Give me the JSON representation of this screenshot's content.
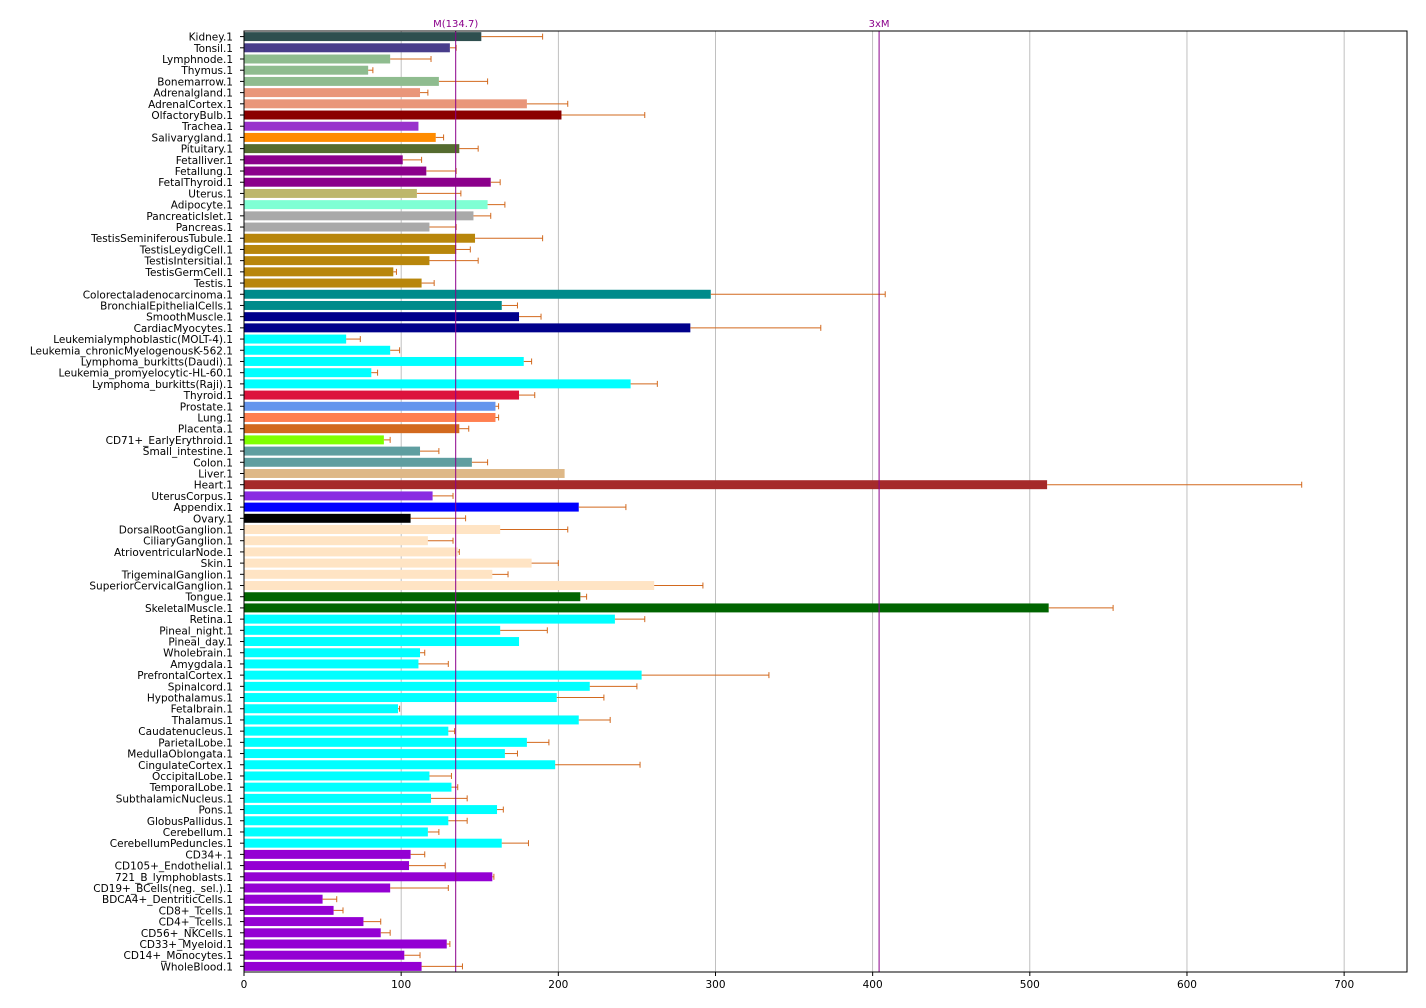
{
  "chart_data": {
    "type": "bar",
    "orientation": "horizontal",
    "grid": "vertical lines at x ticks",
    "xlim": [
      0,
      740
    ],
    "xticks": [
      0,
      100,
      200,
      300,
      400,
      500,
      600,
      700
    ],
    "reference_lines": [
      {
        "label": "M(134.7)",
        "value": 134.7,
        "color": "#8b008b"
      },
      {
        "label": "3xM",
        "value": 404.1,
        "color": "#8b008b"
      }
    ],
    "error_bar_color": "#d2691e",
    "bars": [
      {
        "label": "Kidney.1",
        "value": 151,
        "err": 39,
        "color": "#2f4f4f"
      },
      {
        "label": "Tonsil.1",
        "value": 131,
        "err": 4,
        "color": "#483d8b"
      },
      {
        "label": "Lymphnode.1",
        "value": 93,
        "err": 26,
        "color": "#8fbc8f"
      },
      {
        "label": "Thymus.1",
        "value": 79,
        "err": 3,
        "color": "#8fbc8f"
      },
      {
        "label": "Bonemarrow.1",
        "value": 124,
        "err": 31,
        "color": "#8fbc8f"
      },
      {
        "label": "Adrenalgland.1",
        "value": 112,
        "err": 5,
        "color": "#e9967a"
      },
      {
        "label": "AdrenalCortex.1",
        "value": 180,
        "err": 26,
        "color": "#e9967a"
      },
      {
        "label": "OlfactoryBulb.1",
        "value": 202,
        "err": 53,
        "color": "#8b0000"
      },
      {
        "label": "Trachea.1",
        "value": 111,
        "err": 0,
        "color": "#9932cc"
      },
      {
        "label": "Salivarygland.1",
        "value": 122,
        "err": 5,
        "color": "#ff8c00"
      },
      {
        "label": "Pituitary.1",
        "value": 137,
        "err": 12,
        "color": "#556b2f"
      },
      {
        "label": "Fetalliver.1",
        "value": 101,
        "err": 12,
        "color": "#8b008b"
      },
      {
        "label": "Fetallung.1",
        "value": 116,
        "err": 19,
        "color": "#8b008b"
      },
      {
        "label": "FetalThyroid.1",
        "value": 157,
        "err": 6,
        "color": "#8b008b"
      },
      {
        "label": "Uterus.1",
        "value": 110,
        "err": 28,
        "color": "#bdb76b"
      },
      {
        "label": "Adipocyte.1",
        "value": 155,
        "err": 11,
        "color": "#7fffd4"
      },
      {
        "label": "PancreaticIslet.1",
        "value": 146,
        "err": 11,
        "color": "#a9a9a9"
      },
      {
        "label": "Pancreas.1",
        "value": 118,
        "err": 17,
        "color": "#a9a9a9"
      },
      {
        "label": "TestisSeminiferousTubule.1",
        "value": 147,
        "err": 43,
        "color": "#b8860b"
      },
      {
        "label": "TestisLeydigCell.1",
        "value": 135,
        "err": 9,
        "color": "#b8860b"
      },
      {
        "label": "TestisIntersitial.1",
        "value": 118,
        "err": 31,
        "color": "#b8860b"
      },
      {
        "label": "TestisGermCell.1",
        "value": 95,
        "err": 2,
        "color": "#b8860b"
      },
      {
        "label": "Testis.1",
        "value": 113,
        "err": 8,
        "color": "#b8860b"
      },
      {
        "label": "Colorectaladenocarcinoma.1",
        "value": 297,
        "err": 111,
        "color": "#008b8b"
      },
      {
        "label": "BronchialEpithelialCells.1",
        "value": 164,
        "err": 10,
        "color": "#008b8b"
      },
      {
        "label": "SmoothMuscle.1",
        "value": 175,
        "err": 14,
        "color": "#00008b"
      },
      {
        "label": "CardiacMyocytes.1",
        "value": 284,
        "err": 83,
        "color": "#00008b"
      },
      {
        "label": "Leukemialymphoblastic(MOLT-4).1",
        "value": 65,
        "err": 9,
        "color": "#00ffff"
      },
      {
        "label": "Leukemia_chronicMyelogenousK-562.1",
        "value": 93,
        "err": 6,
        "color": "#00ffff"
      },
      {
        "label": "Lymphoma_burkitts(Daudi).1",
        "value": 178,
        "err": 5,
        "color": "#00ffff"
      },
      {
        "label": "Leukemia_promyelocytic-HL-60.1",
        "value": 81,
        "err": 4,
        "color": "#00ffff"
      },
      {
        "label": "Lymphoma_burkitts(Raji).1",
        "value": 246,
        "err": 17,
        "color": "#00ffff"
      },
      {
        "label": "Thyroid.1",
        "value": 175,
        "err": 10,
        "color": "#dc143c"
      },
      {
        "label": "Prostate.1",
        "value": 160,
        "err": 2,
        "color": "#6495ed"
      },
      {
        "label": "Lung.1",
        "value": 160,
        "err": 2,
        "color": "#ff7f50"
      },
      {
        "label": "Placenta.1",
        "value": 137,
        "err": 6,
        "color": "#d2691e"
      },
      {
        "label": "CD71+_EarlyErythroid.1",
        "value": 89,
        "err": 4,
        "color": "#7fff00"
      },
      {
        "label": "Small_intestine.1",
        "value": 112,
        "err": 12,
        "color": "#5f9ea0"
      },
      {
        "label": "Colon.1",
        "value": 145,
        "err": 10,
        "color": "#5f9ea0"
      },
      {
        "label": "Liver.1",
        "value": 204,
        "err": 0,
        "color": "#deb887"
      },
      {
        "label": "Heart.1",
        "value": 511,
        "err": 162,
        "color": "#a52a2a"
      },
      {
        "label": "UterusCorpus.1",
        "value": 120,
        "err": 13,
        "color": "#8a2be2"
      },
      {
        "label": "Appendix.1",
        "value": 213,
        "err": 30,
        "color": "#0000ff"
      },
      {
        "label": "Ovary.1",
        "value": 106,
        "err": 35,
        "color": "#000000"
      },
      {
        "label": "DorsalRootGanglion.1",
        "value": 163,
        "err": 43,
        "color": "#ffe4c4"
      },
      {
        "label": "CiliaryGanglion.1",
        "value": 117,
        "err": 16,
        "color": "#ffe4c4"
      },
      {
        "label": "AtrioventricularNode.1",
        "value": 136,
        "err": 1,
        "color": "#ffe4c4"
      },
      {
        "label": "Skin.1",
        "value": 183,
        "err": 17,
        "color": "#ffe4c4"
      },
      {
        "label": "TrigeminalGanglion.1",
        "value": 158,
        "err": 10,
        "color": "#ffe4c4"
      },
      {
        "label": "SuperiorCervicalGanglion.1",
        "value": 261,
        "err": 31,
        "color": "#ffe4c4"
      },
      {
        "label": "Tongue.1",
        "value": 214,
        "err": 4,
        "color": "#006400"
      },
      {
        "label": "SkeletalMuscle.1",
        "value": 512,
        "err": 41,
        "color": "#006400"
      },
      {
        "label": "Retina.1",
        "value": 236,
        "err": 19,
        "color": "#00ffff"
      },
      {
        "label": "Pineal_night.1",
        "value": 163,
        "err": 30,
        "color": "#00ffff"
      },
      {
        "label": "Pineal_day.1",
        "value": 175,
        "err": 0,
        "color": "#00ffff"
      },
      {
        "label": "Wholebrain.1",
        "value": 112,
        "err": 3,
        "color": "#00ffff"
      },
      {
        "label": "Amygdala.1",
        "value": 111,
        "err": 19,
        "color": "#00ffff"
      },
      {
        "label": "PrefrontalCortex.1",
        "value": 253,
        "err": 81,
        "color": "#00ffff"
      },
      {
        "label": "Spinalcord.1",
        "value": 220,
        "err": 30,
        "color": "#00ffff"
      },
      {
        "label": "Hypothalamus.1",
        "value": 199,
        "err": 30,
        "color": "#00ffff"
      },
      {
        "label": "Fetalbrain.1",
        "value": 98,
        "err": 1,
        "color": "#00ffff"
      },
      {
        "label": "Thalamus.1",
        "value": 213,
        "err": 20,
        "color": "#00ffff"
      },
      {
        "label": "Caudatenucleus.1",
        "value": 130,
        "err": 4,
        "color": "#00ffff"
      },
      {
        "label": "ParietalLobe.1",
        "value": 180,
        "err": 14,
        "color": "#00ffff"
      },
      {
        "label": "MedullaOblongata.1",
        "value": 166,
        "err": 8,
        "color": "#00ffff"
      },
      {
        "label": "CingulateCortex.1",
        "value": 198,
        "err": 54,
        "color": "#00ffff"
      },
      {
        "label": "OccipitalLobe.1",
        "value": 118,
        "err": 14,
        "color": "#00ffff"
      },
      {
        "label": "TemporalLobe.1",
        "value": 132,
        "err": 4,
        "color": "#00ffff"
      },
      {
        "label": "SubthalamicNucleus.1",
        "value": 119,
        "err": 23,
        "color": "#00ffff"
      },
      {
        "label": "Pons.1",
        "value": 161,
        "err": 4,
        "color": "#00ffff"
      },
      {
        "label": "GlobusPallidus.1",
        "value": 130,
        "err": 12,
        "color": "#00ffff"
      },
      {
        "label": "Cerebellum.1",
        "value": 117,
        "err": 7,
        "color": "#00ffff"
      },
      {
        "label": "CerebellumPeduncles.1",
        "value": 164,
        "err": 17,
        "color": "#00ffff"
      },
      {
        "label": "CD34+.1",
        "value": 106,
        "err": 9,
        "color": "#9400d3"
      },
      {
        "label": "CD105+_Endothelial.1",
        "value": 105,
        "err": 23,
        "color": "#9400d3"
      },
      {
        "label": "721_B_lymphoblasts.1",
        "value": 158,
        "err": 1,
        "color": "#9400d3"
      },
      {
        "label": "CD19+_BCells(neg._sel.).1",
        "value": 93,
        "err": 37,
        "color": "#9400d3"
      },
      {
        "label": "BDCA4+_DentriticCells.1",
        "value": 50,
        "err": 9,
        "color": "#9400d3"
      },
      {
        "label": "CD8+_Tcells.1",
        "value": 57,
        "err": 6,
        "color": "#9400d3"
      },
      {
        "label": "CD4+_Tcells.1",
        "value": 76,
        "err": 11,
        "color": "#9400d3"
      },
      {
        "label": "CD56+_NKCells.1",
        "value": 87,
        "err": 6,
        "color": "#9400d3"
      },
      {
        "label": "CD33+_Myeloid.1",
        "value": 129,
        "err": 2,
        "color": "#9400d3"
      },
      {
        "label": "CD14+_Monocytes.1",
        "value": 102,
        "err": 10,
        "color": "#9400d3"
      },
      {
        "label": "WholeBlood.1",
        "value": 113,
        "err": 26,
        "color": "#9400d3"
      }
    ]
  }
}
